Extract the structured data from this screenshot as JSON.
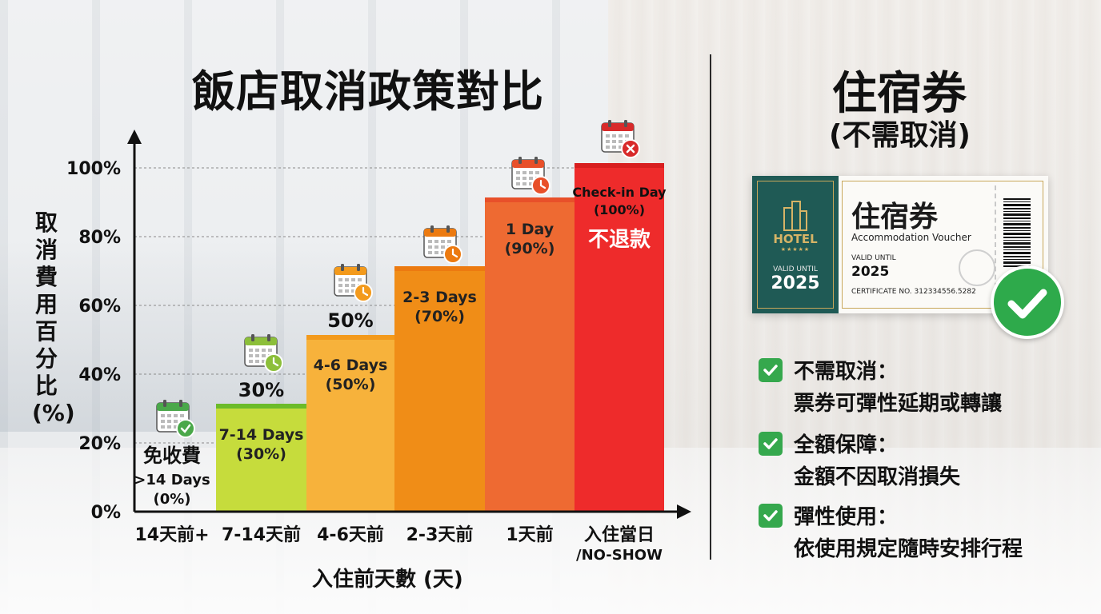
{
  "title": "飯店取消政策對比",
  "chart_data": {
    "type": "bar",
    "ylabel": "取消費用百分比(%)",
    "xlabel": "入住前天數 (天)",
    "ylim": [
      0,
      100
    ],
    "yticks": [
      "0%",
      "20%",
      "40%",
      "60%",
      "80%",
      "100%"
    ],
    "categories": [
      "14天前+",
      "7-14天前",
      "4-6天前",
      "2-3天前",
      "1天前",
      "入住當日"
    ],
    "category_sub": [
      "",
      "",
      "",
      "",
      "",
      "/NO-SHOW"
    ],
    "values": [
      0,
      30,
      50,
      70,
      90,
      100
    ],
    "colors": [
      "#ffffff",
      "#c6dc3c",
      "#f7b23b",
      "#f08d17",
      "#ee6a32",
      "#ee2b2b"
    ],
    "top_colors": [
      "#4bb04b",
      "#6cbb2a",
      "#f39a1c",
      "#ec7a10",
      "#e8502a",
      "#d81f1f"
    ],
    "inner_labels": [
      [
        "免收費",
        ">14 Days",
        "(0%)"
      ],
      [
        "7-14 Days",
        "(30%)"
      ],
      [
        "4-6 Days",
        "(50%)"
      ],
      [
        "2-3 Days",
        "(70%)"
      ],
      [
        "1 Day",
        "(90%)"
      ],
      [
        "Check-in Day",
        "(100%)",
        "不退款"
      ]
    ],
    "top_labels": [
      "",
      "30%",
      "50%",
      "",
      "",
      ""
    ],
    "icon_colors": [
      "#4aa84a",
      "#8cbf3a",
      "#f39a1c",
      "#ec7a10",
      "#e8502a",
      "#d82a2a"
    ],
    "icons": [
      "calendar-check-icon",
      "calendar-clock-icon",
      "calendar-clock-icon",
      "calendar-clock-icon",
      "calendar-clock-icon",
      "calendar-x-icon"
    ]
  },
  "right": {
    "title": "住宿券",
    "subtitle": "(不需取消)",
    "voucher": {
      "hotel": "HOTEL",
      "stars": "★★★★★",
      "valid_label_left": "VALID UNTIL",
      "year_left": "2025",
      "name": "住宿券",
      "english": "Accommodation Voucher",
      "valid_label_right": "VALID UNTIL",
      "year_right": "2025",
      "certificate": "CERTIFICATE NO. 312334556.5282",
      "serial": "123356858"
    },
    "features": [
      {
        "head": "不需取消：",
        "desc": "票券可彈性延期或轉讓"
      },
      {
        "head": "全額保障：",
        "desc": "金額不因取消損失"
      },
      {
        "head": "彈性使用：",
        "desc": "依使用規定隨時安排行程"
      }
    ]
  }
}
